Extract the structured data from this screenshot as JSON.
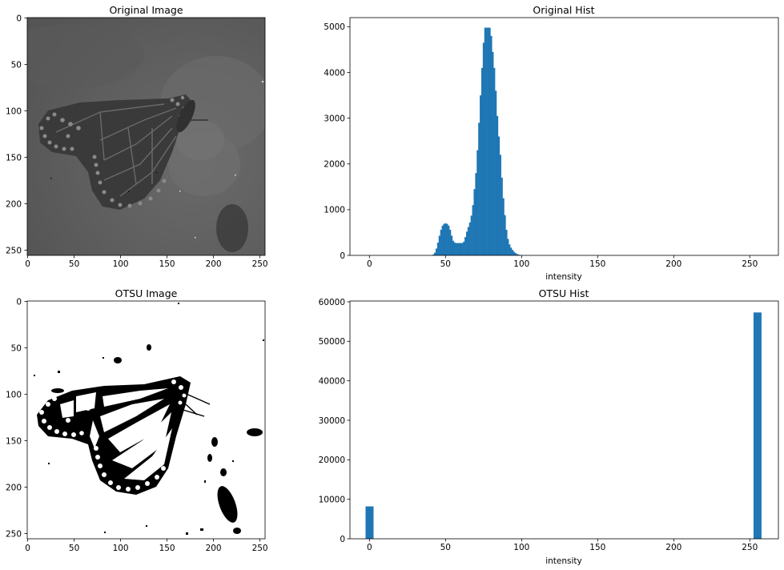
{
  "chart_data": [
    {
      "type": "image",
      "title": "Original Image",
      "image": "grayscale monarch butterfly on flower, low contrast",
      "xticks": [
        0,
        50,
        100,
        150,
        200,
        250
      ],
      "yticks": [
        0,
        50,
        100,
        150,
        200,
        250
      ],
      "xlim": [
        -0.5,
        255.5
      ],
      "ylim": [
        255.5,
        -0.5
      ]
    },
    {
      "type": "bar",
      "title": "Original Hist",
      "xlabel": "intensity",
      "ylabel": "",
      "color": "#1f77b4",
      "xlim": [
        -12.8,
        268.8
      ],
      "ylim": [
        0,
        5200
      ],
      "xticks": [
        0,
        50,
        100,
        150,
        200,
        250
      ],
      "yticks": [
        0,
        1000,
        2000,
        3000,
        4000,
        5000
      ],
      "bin_width": 1,
      "x": [
        42,
        43,
        44,
        45,
        46,
        47,
        48,
        49,
        50,
        51,
        52,
        53,
        54,
        55,
        56,
        57,
        58,
        59,
        60,
        61,
        62,
        63,
        64,
        65,
        66,
        67,
        68,
        69,
        70,
        71,
        72,
        73,
        74,
        75,
        76,
        77,
        78,
        79,
        80,
        81,
        82,
        83,
        84,
        85,
        86,
        87,
        88,
        89,
        90,
        91,
        92,
        93,
        94,
        95,
        96,
        97,
        98,
        99,
        100
      ],
      "values": [
        20,
        60,
        150,
        280,
        430,
        560,
        650,
        690,
        700,
        690,
        650,
        560,
        430,
        320,
        280,
        270,
        270,
        270,
        270,
        270,
        300,
        400,
        520,
        620,
        720,
        870,
        1100,
        1450,
        1800,
        2300,
        2900,
        3500,
        4100,
        4650,
        4980,
        4980,
        4980,
        4980,
        4800,
        4450,
        4100,
        3600,
        3050,
        2600,
        2200,
        1700,
        1250,
        880,
        560,
        360,
        240,
        170,
        120,
        80,
        50,
        30,
        18,
        8,
        3
      ]
    },
    {
      "type": "image",
      "title": "OTSU Image",
      "image": "binary thresholded monarch butterfly, black on white",
      "xticks": [
        0,
        50,
        100,
        150,
        200,
        250
      ],
      "yticks": [
        0,
        50,
        100,
        150,
        200,
        250
      ],
      "xlim": [
        -0.5,
        255.5
      ],
      "ylim": [
        255.5,
        -0.5
      ]
    },
    {
      "type": "bar",
      "title": "OTSU Hist",
      "xlabel": "intensity",
      "ylabel": "",
      "color": "#1f77b4",
      "xlim": [
        -12.8,
        268.8
      ],
      "ylim": [
        0,
        60200
      ],
      "xticks": [
        0,
        50,
        100,
        150,
        200,
        250
      ],
      "yticks": [
        0,
        10000,
        20000,
        30000,
        40000,
        50000,
        60000
      ],
      "bin_width": 5.1,
      "x": [
        0,
        255
      ],
      "values": [
        8200,
        57300
      ]
    }
  ]
}
